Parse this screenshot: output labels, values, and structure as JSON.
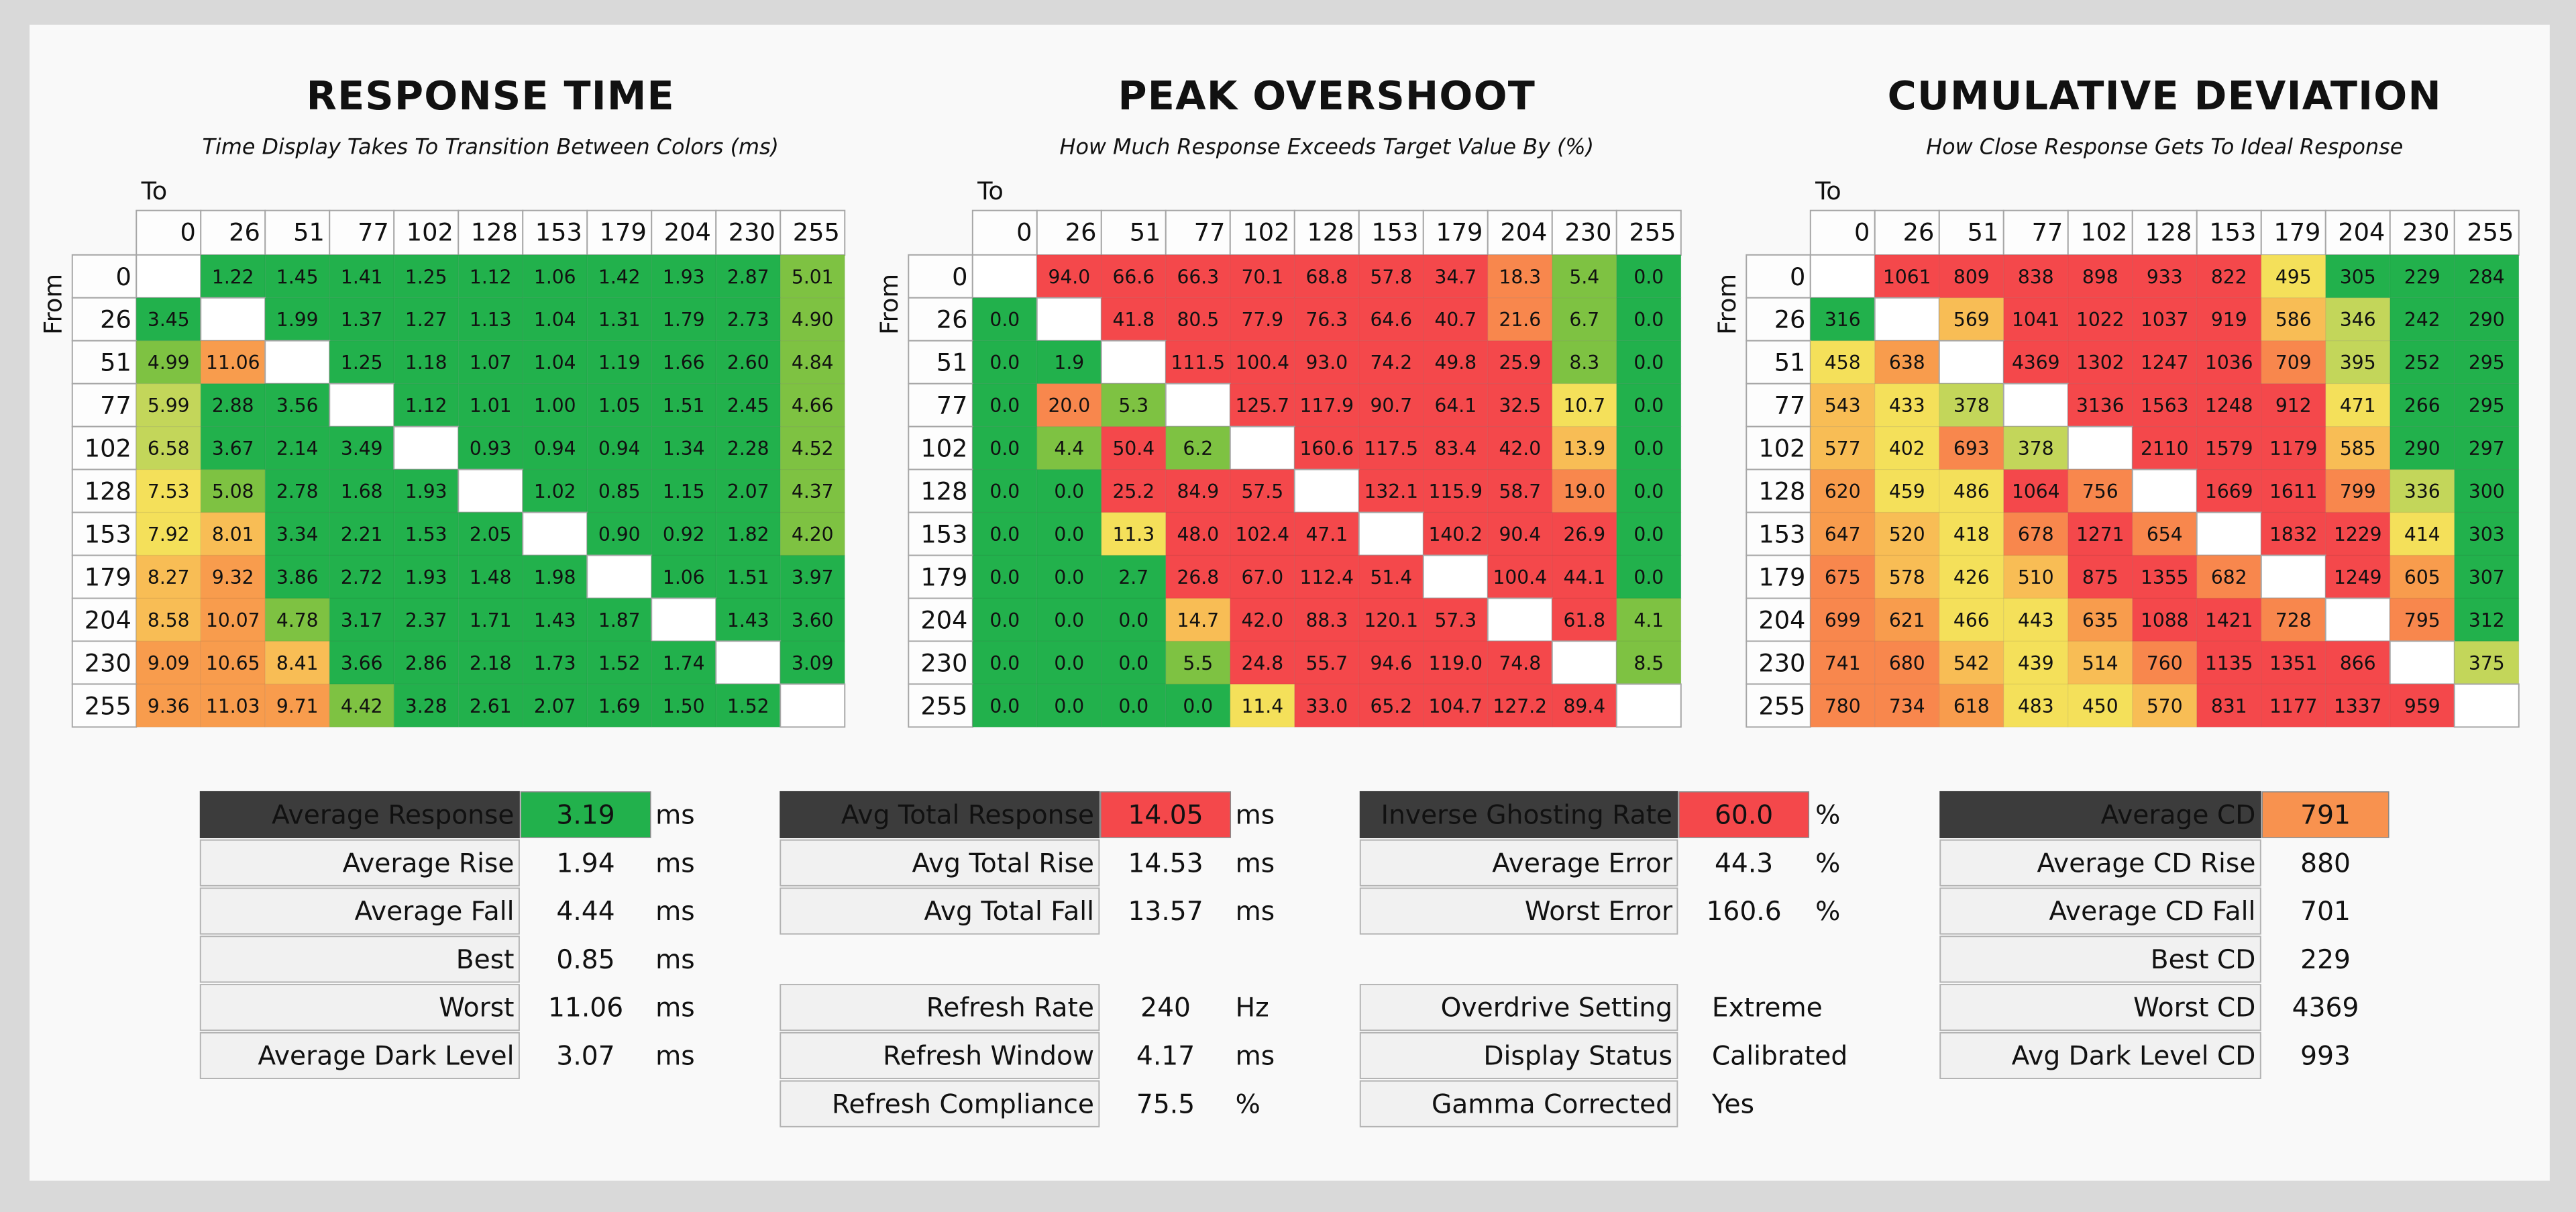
{
  "tables": [
    {
      "title": "RESPONSE TIME",
      "subtitle": "Time Display Takes To Transition Between Colors (ms)",
      "to_label": "To",
      "from_label": "From",
      "columns": [
        "0",
        "26",
        "51",
        "77",
        "102",
        "128",
        "153",
        "179",
        "204",
        "230",
        "255"
      ],
      "rows": [
        {
          "label": "0",
          "cells": [
            null,
            "1.22",
            "1.45",
            "1.41",
            "1.25",
            "1.12",
            "1.06",
            "1.42",
            "1.93",
            "2.87",
            "5.01"
          ]
        },
        {
          "label": "26",
          "cells": [
            "3.45",
            null,
            "1.99",
            "1.37",
            "1.27",
            "1.13",
            "1.04",
            "1.31",
            "1.79",
            "2.73",
            "4.90"
          ]
        },
        {
          "label": "51",
          "cells": [
            "4.99",
            "11.06",
            null,
            "1.25",
            "1.18",
            "1.07",
            "1.04",
            "1.19",
            "1.66",
            "2.60",
            "4.84"
          ]
        },
        {
          "label": "77",
          "cells": [
            "5.99",
            "2.88",
            "3.56",
            null,
            "1.12",
            "1.01",
            "1.00",
            "1.05",
            "1.51",
            "2.45",
            "4.66"
          ]
        },
        {
          "label": "102",
          "cells": [
            "6.58",
            "3.67",
            "2.14",
            "3.49",
            null,
            "0.93",
            "0.94",
            "0.94",
            "1.34",
            "2.28",
            "4.52"
          ]
        },
        {
          "label": "128",
          "cells": [
            "7.53",
            "5.08",
            "2.78",
            "1.68",
            "1.93",
            null,
            "1.02",
            "0.85",
            "1.15",
            "2.07",
            "4.37"
          ]
        },
        {
          "label": "153",
          "cells": [
            "7.92",
            "8.01",
            "3.34",
            "2.21",
            "1.53",
            "2.05",
            null,
            "0.90",
            "0.92",
            "1.82",
            "4.20"
          ]
        },
        {
          "label": "179",
          "cells": [
            "8.27",
            "9.32",
            "3.86",
            "2.72",
            "1.93",
            "1.48",
            "1.98",
            null,
            "1.06",
            "1.51",
            "3.97"
          ]
        },
        {
          "label": "204",
          "cells": [
            "8.58",
            "10.07",
            "4.78",
            "3.17",
            "2.37",
            "1.71",
            "1.43",
            "1.87",
            null,
            "1.43",
            "3.60"
          ]
        },
        {
          "label": "230",
          "cells": [
            "9.09",
            "10.65",
            "8.41",
            "3.66",
            "2.86",
            "2.18",
            "1.73",
            "1.52",
            "1.74",
            null,
            "3.09"
          ]
        },
        {
          "label": "255",
          "cells": [
            "9.36",
            "11.03",
            "9.71",
            "4.42",
            "3.28",
            "2.61",
            "2.07",
            "1.69",
            "1.50",
            "1.52",
            null
          ]
        }
      ]
    },
    {
      "title": "PEAK OVERSHOOT",
      "subtitle": "How Much Response Exceeds Target Value By (%)",
      "to_label": "To",
      "from_label": "From",
      "columns": [
        "0",
        "26",
        "51",
        "77",
        "102",
        "128",
        "153",
        "179",
        "204",
        "230",
        "255"
      ],
      "rows": [
        {
          "label": "0",
          "cells": [
            null,
            "94.0",
            "66.6",
            "66.3",
            "70.1",
            "68.8",
            "57.8",
            "34.7",
            "18.3",
            "5.4",
            "0.0"
          ]
        },
        {
          "label": "26",
          "cells": [
            "0.0",
            null,
            "41.8",
            "80.5",
            "77.9",
            "76.3",
            "64.6",
            "40.7",
            "21.6",
            "6.7",
            "0.0"
          ]
        },
        {
          "label": "51",
          "cells": [
            "0.0",
            "1.9",
            null,
            "111.5",
            "100.4",
            "93.0",
            "74.2",
            "49.8",
            "25.9",
            "8.3",
            "0.0"
          ]
        },
        {
          "label": "77",
          "cells": [
            "0.0",
            "20.0",
            "5.3",
            null,
            "125.7",
            "117.9",
            "90.7",
            "64.1",
            "32.5",
            "10.7",
            "0.0"
          ]
        },
        {
          "label": "102",
          "cells": [
            "0.0",
            "4.4",
            "50.4",
            "6.2",
            null,
            "160.6",
            "117.5",
            "83.4",
            "42.0",
            "13.9",
            "0.0"
          ]
        },
        {
          "label": "128",
          "cells": [
            "0.0",
            "0.0",
            "25.2",
            "84.9",
            "57.5",
            null,
            "132.1",
            "115.9",
            "58.7",
            "19.0",
            "0.0"
          ]
        },
        {
          "label": "153",
          "cells": [
            "0.0",
            "0.0",
            "11.3",
            "48.0",
            "102.4",
            "47.1",
            null,
            "140.2",
            "90.4",
            "26.9",
            "0.0"
          ]
        },
        {
          "label": "179",
          "cells": [
            "0.0",
            "0.0",
            "2.7",
            "26.8",
            "67.0",
            "112.4",
            "51.4",
            null,
            "100.4",
            "44.1",
            "0.0"
          ]
        },
        {
          "label": "204",
          "cells": [
            "0.0",
            "0.0",
            "0.0",
            "14.7",
            "42.0",
            "88.3",
            "120.1",
            "57.3",
            null,
            "61.8",
            "4.1"
          ]
        },
        {
          "label": "230",
          "cells": [
            "0.0",
            "0.0",
            "0.0",
            "5.5",
            "24.8",
            "55.7",
            "94.6",
            "119.0",
            "74.8",
            null,
            "8.5"
          ]
        },
        {
          "label": "255",
          "cells": [
            "0.0",
            "0.0",
            "0.0",
            "0.0",
            "11.4",
            "33.0",
            "65.2",
            "104.7",
            "127.2",
            "89.4",
            null
          ]
        }
      ]
    },
    {
      "title": "CUMULATIVE DEVIATION",
      "subtitle": "How Close Response Gets To Ideal Response",
      "to_label": "To",
      "from_label": "From",
      "columns": [
        "0",
        "26",
        "51",
        "77",
        "102",
        "128",
        "153",
        "179",
        "204",
        "230",
        "255"
      ],
      "rows": [
        {
          "label": "0",
          "cells": [
            null,
            "1061",
            "809",
            "838",
            "898",
            "933",
            "822",
            "495",
            "305",
            "229",
            "284"
          ]
        },
        {
          "label": "26",
          "cells": [
            "316",
            null,
            "569",
            "1041",
            "1022",
            "1037",
            "919",
            "586",
            "346",
            "242",
            "290"
          ]
        },
        {
          "label": "51",
          "cells": [
            "458",
            "638",
            null,
            "4369",
            "1302",
            "1247",
            "1036",
            "709",
            "395",
            "252",
            "295"
          ]
        },
        {
          "label": "77",
          "cells": [
            "543",
            "433",
            "378",
            null,
            "3136",
            "1563",
            "1248",
            "912",
            "471",
            "266",
            "295"
          ]
        },
        {
          "label": "102",
          "cells": [
            "577",
            "402",
            "693",
            "378",
            null,
            "2110",
            "1579",
            "1179",
            "585",
            "290",
            "297"
          ]
        },
        {
          "label": "128",
          "cells": [
            "620",
            "459",
            "486",
            "1064",
            "756",
            null,
            "1669",
            "1611",
            "799",
            "336",
            "300"
          ]
        },
        {
          "label": "153",
          "cells": [
            "647",
            "520",
            "418",
            "678",
            "1271",
            "654",
            null,
            "1832",
            "1229",
            "414",
            "303"
          ]
        },
        {
          "label": "179",
          "cells": [
            "675",
            "578",
            "426",
            "510",
            "875",
            "1355",
            "682",
            null,
            "1249",
            "605",
            "307"
          ]
        },
        {
          "label": "204",
          "cells": [
            "699",
            "621",
            "466",
            "443",
            "635",
            "1088",
            "1421",
            "728",
            null,
            "795",
            "312"
          ]
        },
        {
          "label": "230",
          "cells": [
            "741",
            "680",
            "542",
            "439",
            "514",
            "760",
            "1135",
            "1351",
            "866",
            null,
            "375"
          ]
        },
        {
          "label": "255",
          "cells": [
            "780",
            "734",
            "618",
            "483",
            "450",
            "570",
            "831",
            "1177",
            "1337",
            "959",
            null
          ]
        }
      ]
    }
  ],
  "stats": [
    {
      "header_color": "#22b14c",
      "groups": [
        [
          {
            "label": "Average Response",
            "value": "3.19",
            "unit": "ms"
          },
          {
            "label": "Average Rise",
            "value": "1.94",
            "unit": "ms"
          },
          {
            "label": "Average Fall",
            "value": "4.44",
            "unit": "ms"
          },
          {
            "label": "Best",
            "value": "0.85",
            "unit": "ms"
          },
          {
            "label": "Worst",
            "value": "11.06",
            "unit": "ms"
          },
          {
            "label": "Average Dark Level",
            "value": "3.07",
            "unit": "ms"
          }
        ]
      ]
    },
    {
      "header_color": "#f4484b",
      "groups": [
        [
          {
            "label": "Avg Total Response",
            "value": "14.05",
            "unit": "ms"
          },
          {
            "label": "Avg Total Rise",
            "value": "14.53",
            "unit": "ms"
          },
          {
            "label": "Avg Total Fall",
            "value": "13.57",
            "unit": "ms"
          }
        ],
        [
          {
            "label": "Refresh Rate",
            "value": "240",
            "unit": "Hz"
          },
          {
            "label": "Refresh Window",
            "value": "4.17",
            "unit": "ms"
          },
          {
            "label": "Refresh Compliance",
            "value": "75.5",
            "unit": "%"
          }
        ]
      ]
    },
    {
      "header_color": "#f4484b",
      "groups": [
        [
          {
            "label": "Inverse Ghosting Rate",
            "value": "60.0",
            "unit": "%"
          },
          {
            "label": "Average Error",
            "value": "44.3",
            "unit": "%"
          },
          {
            "label": "Worst Error",
            "value": "160.6",
            "unit": "%"
          }
        ],
        [
          {
            "label": "Overdrive Setting",
            "value": "Extreme"
          },
          {
            "label": "Display Status",
            "value": "Calibrated"
          },
          {
            "label": "Gamma Corrected",
            "value": "Yes"
          }
        ]
      ]
    },
    {
      "header_color": "#f8924f",
      "groups": [
        [
          {
            "label": "Average CD",
            "value": "791"
          },
          {
            "label": "Average CD Rise",
            "value": "880"
          },
          {
            "label": "Average CD Fall",
            "value": "701"
          },
          {
            "label": "Best CD",
            "value": "229"
          },
          {
            "label": "Worst CD",
            "value": "4369"
          },
          {
            "label": "Avg Dark Level CD",
            "value": "993"
          }
        ]
      ]
    }
  ]
}
